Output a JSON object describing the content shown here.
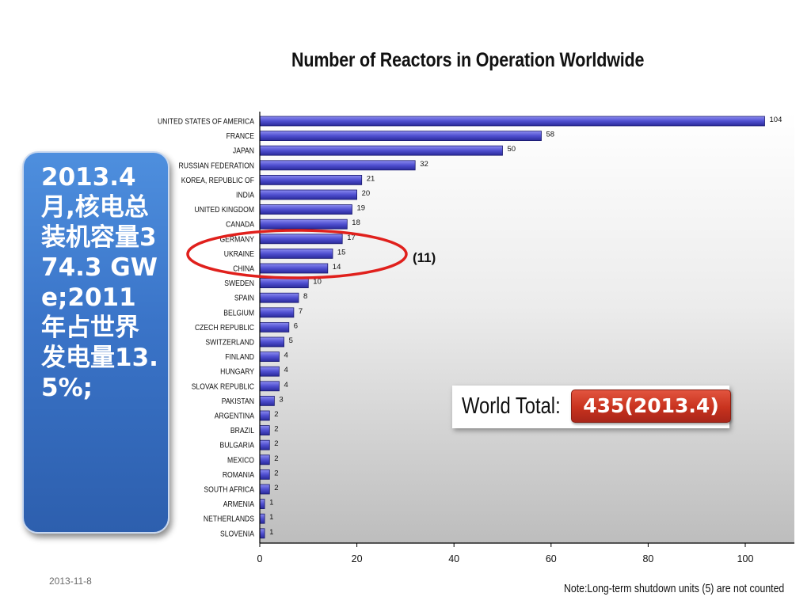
{
  "side_panel": {
    "text": "2013.4月,核电总装机容量374.3 GWe;2011年占世界发电量13.5%;"
  },
  "world_total": {
    "label": "World Total:",
    "value": "435(2013.4)"
  },
  "annotation": {
    "label": "(11)",
    "highlighted_categories": [
      "GERMANY",
      "UKRAINE",
      "CHINA"
    ]
  },
  "footer": {
    "date": "2013-11-8",
    "note": "Note:Long-term  shutdown  units (5) are not counted"
  },
  "chart_data": {
    "type": "bar",
    "orientation": "horizontal",
    "title": "Number of Reactors in Operation Worldwide",
    "xlabel": "",
    "ylabel": "",
    "xlim": [
      0,
      110
    ],
    "xticks": [
      0,
      20,
      40,
      60,
      80,
      100
    ],
    "grid": false,
    "legend": "none",
    "bar_color": "#4f4fd0",
    "categories": [
      "UNITED STATES OF AMERICA",
      "FRANCE",
      "JAPAN",
      "RUSSIAN FEDERATION",
      "KOREA, REPUBLIC OF",
      "INDIA",
      "UNITED KINGDOM",
      "CANADA",
      "GERMANY",
      "UKRAINE",
      "CHINA",
      "SWEDEN",
      "SPAIN",
      "BELGIUM",
      "CZECH REPUBLIC",
      "SWITZERLAND",
      "FINLAND",
      "HUNGARY",
      "SLOVAK REPUBLIC",
      "PAKISTAN",
      "ARGENTINA",
      "BRAZIL",
      "BULGARIA",
      "MEXICO",
      "ROMANIA",
      "SOUTH AFRICA",
      "ARMENIA",
      "NETHERLANDS",
      "SLOVENIA"
    ],
    "values": [
      104,
      58,
      50,
      32,
      21,
      20,
      19,
      18,
      17,
      15,
      14,
      10,
      8,
      7,
      6,
      5,
      4,
      4,
      4,
      3,
      2,
      2,
      2,
      2,
      2,
      2,
      1,
      1,
      1
    ]
  }
}
